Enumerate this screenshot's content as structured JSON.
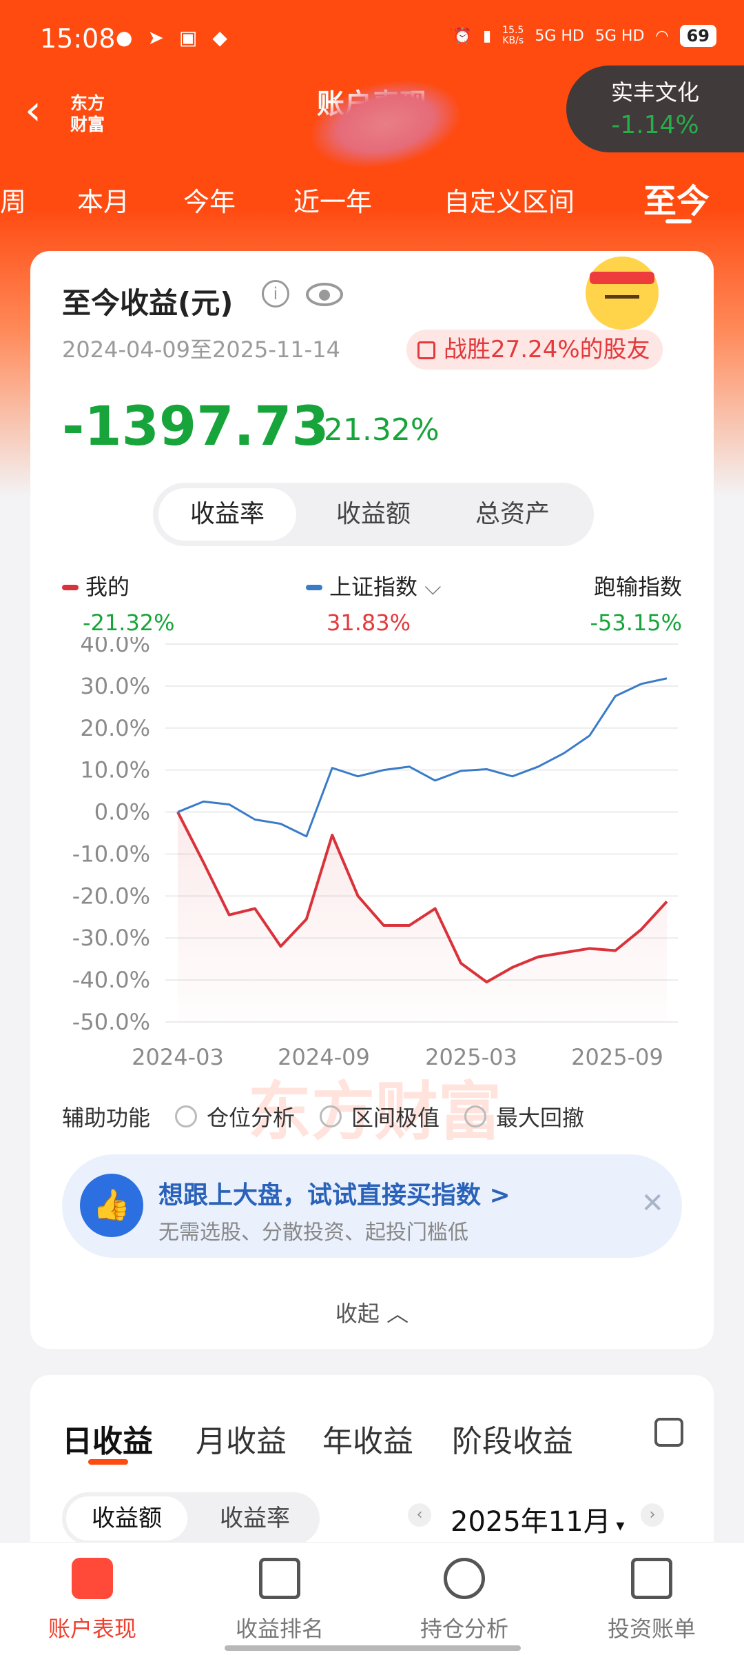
{
  "status_bar": {
    "time": "15:08",
    "net_speed_value": "15.5",
    "net_speed_unit": "KB/s",
    "signal1": "5G HD",
    "signal2": "5G HD",
    "battery": "69"
  },
  "header": {
    "title": "账户表现",
    "logo_line1": "东方",
    "logo_line2": "财富"
  },
  "stock_chip": {
    "name": "实丰文化",
    "change": "-1.14%"
  },
  "periods": [
    "周",
    "本月",
    "今年",
    "近一年",
    "自定义区间",
    "至今"
  ],
  "summary": {
    "title": "至今收益(元)",
    "date_range": "2024-04-09至2025-11-14",
    "beat_text": "战胜27.24%的股友",
    "amount": "-1397.73",
    "percent": "-21.32%"
  },
  "segment": [
    "收益率",
    "收益额",
    "总资产"
  ],
  "legend": {
    "mine_label": "我的",
    "mine_value": "-21.32%",
    "index_label": "上证指数",
    "index_value": "31.83%",
    "lag_label": "跑输指数",
    "lag_value": "-53.15%"
  },
  "colors": {
    "brand": "#ff4a10",
    "mine_line": "#d9323a",
    "index_line": "#3a7bc8",
    "loss": "#17a43a",
    "gain": "#e4393c"
  },
  "watermark": "东方财富",
  "chart_data": {
    "type": "line",
    "x_ticks": [
      "2024-03",
      "2024-09",
      "2025-03",
      "2025-09"
    ],
    "y_ticks": [
      "40.0%",
      "30.0%",
      "20.0%",
      "10.0%",
      "0.0%",
      "-10.0%",
      "-20.0%",
      "-30.0%",
      "-40.0%",
      "-50.0%"
    ],
    "ylim": [
      -50,
      40
    ],
    "x": [
      "2024-04",
      "2024-05",
      "2024-06",
      "2024-07",
      "2024-08",
      "2024-09",
      "2024-10",
      "2024-11",
      "2024-12",
      "2025-01",
      "2025-02",
      "2025-03",
      "2025-04",
      "2025-05",
      "2025-06",
      "2025-07",
      "2025-08",
      "2025-09",
      "2025-10",
      "2025-11"
    ],
    "series": [
      {
        "name": "我的",
        "color": "#d9323a",
        "values": [
          0,
          -12,
          -24.5,
          -23,
          -32,
          -25.5,
          -5.5,
          -20,
          -27,
          -27,
          -23,
          -36,
          -40.5,
          -37,
          -34.5,
          -33.5,
          -32.5,
          -33,
          -28,
          -21.32
        ]
      },
      {
        "name": "上证指数",
        "color": "#3a7bc8",
        "values": [
          0,
          2.5,
          1.8,
          -1.8,
          -2.8,
          -5.8,
          10.5,
          8.5,
          10,
          10.8,
          7.5,
          9.8,
          10.2,
          8.5,
          10.8,
          14,
          18.2,
          27.6,
          30.5,
          31.83
        ]
      }
    ],
    "grid": true
  },
  "aux": {
    "label": "辅助功能",
    "options": [
      "仓位分析",
      "区间极值",
      "最大回撤"
    ]
  },
  "promo": {
    "title": "想跟上大盘，试试直接买指数 >",
    "subtitle": "无需选股、分散投资、起投门槛低"
  },
  "collapse_label": "收起",
  "income_tabs": [
    "日收益",
    "月收益",
    "年收益",
    "阶段收益"
  ],
  "income_segment": [
    "收益额",
    "收益率"
  ],
  "month_selector": "2025年11月",
  "bottom_tabs": [
    "账户表现",
    "收益排名",
    "持仓分析",
    "投资账单"
  ]
}
